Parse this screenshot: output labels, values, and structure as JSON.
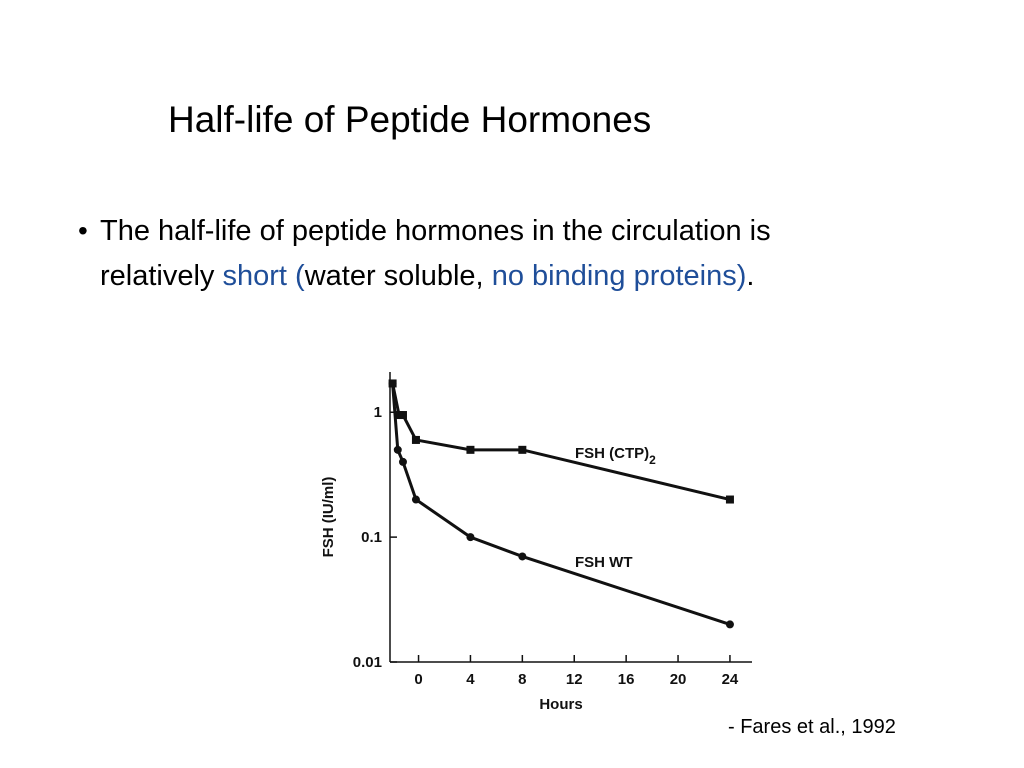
{
  "header": {
    "title": "Half-life of Peptide Hormones"
  },
  "bullet": {
    "line1": "The half-life of peptide hormones in the circulation is",
    "line2_parts": [
      "relatively ",
      "short (",
      "water soluble, ",
      "no binding proteins)",
      "."
    ]
  },
  "chart_data": {
    "type": "line",
    "log_y": true,
    "xlabel": "Hours",
    "ylabel": "FSH (IU/ml)",
    "xlim": [
      -2.2,
      25.7
    ],
    "xticks": [
      0,
      4,
      8,
      12,
      16,
      20,
      24
    ],
    "ylim": [
      0.01,
      2.1
    ],
    "yticks": [
      0.01,
      0.1,
      1
    ],
    "series": [
      {
        "name": "FSH  (CTP)",
        "name_subscript": "2",
        "color": "#111111",
        "marker": "square",
        "x": [
          -2,
          -1.5,
          -1.2,
          -0.2,
          4,
          8,
          24
        ],
        "values": [
          1.7,
          0.95,
          0.95,
          0.6,
          0.5,
          0.5,
          0.2
        ]
      },
      {
        "name": "FSH  WT",
        "color": "#111111",
        "marker": "circle",
        "x": [
          -2,
          -1.6,
          -1.2,
          -0.2,
          4,
          8,
          24
        ],
        "values": [
          1.7,
          0.5,
          0.4,
          0.2,
          0.1,
          0.07,
          0.02
        ]
      }
    ]
  },
  "citation": "- Fares et al., 1992"
}
